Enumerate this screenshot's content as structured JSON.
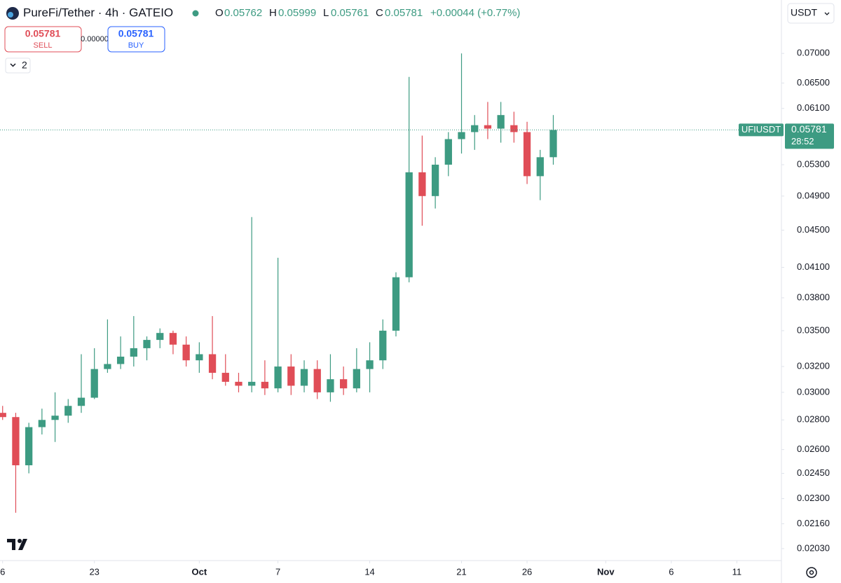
{
  "header": {
    "title": "PureFi/Tether · 4h · GATEIO",
    "o_label": "O",
    "open": "0.05762",
    "h_label": "H",
    "high": "0.05999",
    "l_label": "L",
    "low": "0.05761",
    "c_label": "C",
    "close": "0.05781",
    "change": "+0.00044 (+0.77%)"
  },
  "trade": {
    "sell_price": "0.05781",
    "sell": "SELL",
    "spread": "0.00000",
    "buy_price": "0.05781",
    "buy": "BUY",
    "indicators": "2",
    "currency": "USDT"
  },
  "last_price_label": {
    "symbol": "UFIUSDT",
    "price": "0.05781",
    "countdown": "28:52"
  },
  "chart_data": {
    "type": "candlestick",
    "log_scale": true,
    "up_color": "#3d9b82",
    "down_color": "#e04d57",
    "x": [
      16,
      17,
      18,
      19,
      20,
      21,
      22,
      23,
      24,
      25,
      26,
      27,
      28,
      29,
      30,
      31,
      32,
      33,
      34,
      35,
      36,
      37,
      38,
      39,
      40,
      41,
      42,
      43,
      44,
      45,
      46,
      47,
      48,
      49,
      50,
      51,
      52,
      53,
      54,
      55,
      56,
      57,
      58
    ],
    "open": [
      0.0285,
      0.0282,
      0.025,
      0.0275,
      0.028,
      0.0283,
      0.029,
      0.0296,
      0.0318,
      0.0322,
      0.0328,
      0.0335,
      0.0342,
      0.0348,
      0.0338,
      0.0325,
      0.033,
      0.0315,
      0.0308,
      0.0305,
      0.0308,
      0.0303,
      0.032,
      0.0305,
      0.0318,
      0.03,
      0.031,
      0.0303,
      0.0318,
      0.0325,
      0.035,
      0.04,
      0.052,
      0.049,
      0.053,
      0.0565,
      0.0575,
      0.0585,
      0.058,
      0.0585,
      0.0575,
      0.0515,
      0.054
    ],
    "high": [
      0.029,
      0.0285,
      0.0278,
      0.0288,
      0.03,
      0.0295,
      0.033,
      0.0335,
      0.036,
      0.0345,
      0.0363,
      0.0345,
      0.0352,
      0.035,
      0.0345,
      0.034,
      0.0363,
      0.033,
      0.0315,
      0.0465,
      0.0325,
      0.042,
      0.033,
      0.0325,
      0.0325,
      0.033,
      0.032,
      0.0335,
      0.034,
      0.036,
      0.0405,
      0.066,
      0.057,
      0.054,
      0.0575,
      0.07,
      0.06,
      0.062,
      0.062,
      0.0605,
      0.059,
      0.055,
      0.06
    ],
    "low": [
      0.028,
      0.0222,
      0.0245,
      0.027,
      0.0265,
      0.0278,
      0.0285,
      0.0295,
      0.0315,
      0.0318,
      0.032,
      0.0325,
      0.0335,
      0.033,
      0.032,
      0.0315,
      0.031,
      0.0305,
      0.03,
      0.03,
      0.0298,
      0.03,
      0.0298,
      0.03,
      0.0295,
      0.0293,
      0.0298,
      0.03,
      0.03,
      0.0318,
      0.0345,
      0.0395,
      0.0455,
      0.0475,
      0.0515,
      0.0545,
      0.055,
      0.0565,
      0.056,
      0.056,
      0.0505,
      0.0485,
      0.053
    ],
    "close": [
      0.0282,
      0.025,
      0.0275,
      0.028,
      0.0283,
      0.029,
      0.0296,
      0.0318,
      0.0322,
      0.0328,
      0.0335,
      0.0342,
      0.0348,
      0.0338,
      0.0325,
      0.033,
      0.0315,
      0.0308,
      0.0305,
      0.0308,
      0.0303,
      0.032,
      0.0305,
      0.0318,
      0.03,
      0.031,
      0.0303,
      0.0318,
      0.0325,
      0.035,
      0.04,
      0.052,
      0.049,
      0.053,
      0.0565,
      0.0575,
      0.0585,
      0.058,
      0.06,
      0.0575,
      0.0515,
      0.054,
      0.05781
    ],
    "xlim": [
      15.8,
      75.4
    ],
    "xticks": [
      {
        "value": 16,
        "label": "6"
      },
      23,
      {
        "value": 31,
        "label": "Oct"
      },
      {
        "value": 37,
        "label": "7"
      },
      {
        "value": 44,
        "label": "14"
      },
      {
        "value": 51,
        "label": "21"
      },
      {
        "value": 56,
        "label": "26"
      },
      {
        "value": 62,
        "label": "Nov"
      },
      {
        "value": 67,
        "label": "6"
      },
      {
        "value": 72,
        "label": "11"
      }
    ],
    "ylim": [
      0.0197,
      0.0759
    ],
    "yticks": [
      {
        "value": 0.0203,
        "label": "0.02030"
      },
      {
        "value": 0.0216,
        "label": "0.02160"
      },
      {
        "value": 0.023,
        "label": "0.02300"
      },
      {
        "value": 0.0245,
        "label": "0.02450"
      },
      {
        "value": 0.026,
        "label": "0.02600"
      },
      {
        "value": 0.028,
        "label": "0.02800"
      },
      {
        "value": 0.03,
        "label": "0.03000"
      },
      {
        "value": 0.032,
        "label": "0.03200"
      },
      {
        "value": 0.035,
        "label": "0.03500"
      },
      {
        "value": 0.038,
        "label": "0.03800"
      },
      {
        "value": 0.041,
        "label": "0.04100"
      },
      {
        "value": 0.045,
        "label": "0.04500"
      },
      {
        "value": 0.049,
        "label": "0.04900"
      },
      {
        "value": 0.053,
        "label": "0.05300"
      },
      {
        "value": 0.061,
        "label": "0.06100"
      },
      {
        "value": 0.065,
        "label": "0.06500"
      },
      {
        "value": 0.07,
        "label": "0.07000"
      }
    ]
  }
}
